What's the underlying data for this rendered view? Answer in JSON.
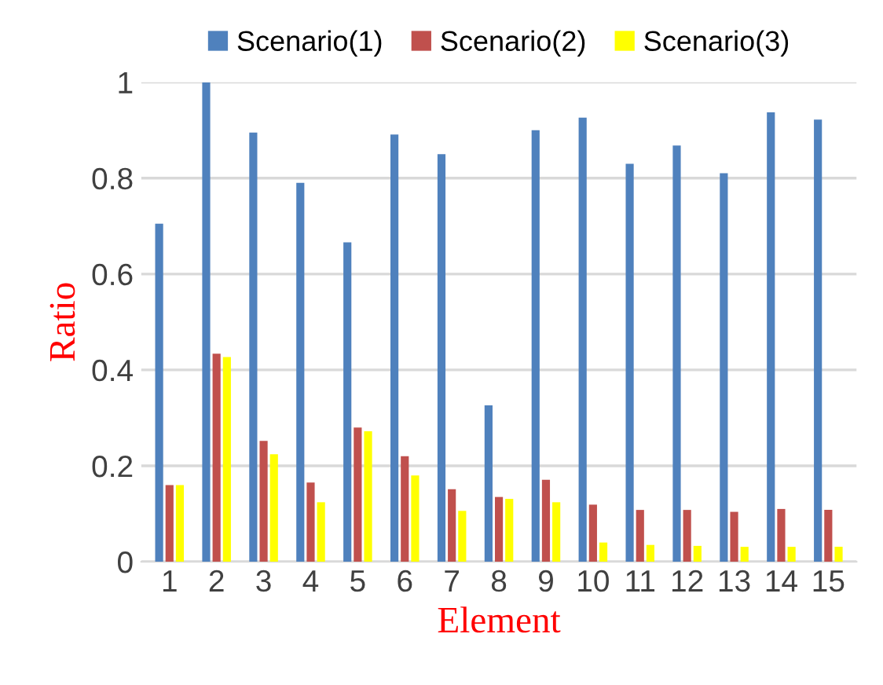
{
  "chart_data": {
    "type": "bar",
    "xlabel": "Element",
    "ylabel": "Ratio",
    "categories": [
      "1",
      "2",
      "3",
      "4",
      "5",
      "6",
      "7",
      "8",
      "9",
      "10",
      "11",
      "12",
      "13",
      "14",
      "15"
    ],
    "series": [
      {
        "name": "Scenario(1)",
        "color": "#4f81bd",
        "values": [
          0.705,
          1.0,
          0.895,
          0.79,
          0.666,
          0.891,
          0.85,
          0.326,
          0.9,
          0.926,
          0.83,
          0.868,
          0.81,
          0.937,
          0.922
        ]
      },
      {
        "name": "Scenario(2)",
        "color": "#c0504d",
        "values": [
          0.16,
          0.434,
          0.252,
          0.165,
          0.28,
          0.22,
          0.151,
          0.135,
          0.171,
          0.119,
          0.108,
          0.108,
          0.104,
          0.11,
          0.108
        ]
      },
      {
        "name": "Scenario(3)",
        "color": "#ffff00",
        "values": [
          0.16,
          0.427,
          0.224,
          0.124,
          0.272,
          0.18,
          0.106,
          0.131,
          0.124,
          0.04,
          0.035,
          0.033,
          0.031,
          0.031,
          0.031
        ]
      }
    ],
    "ylim": [
      0,
      1
    ],
    "yticks": [
      0,
      0.2,
      0.4,
      0.6,
      0.8,
      1
    ],
    "grid": "y",
    "legend": "top"
  }
}
